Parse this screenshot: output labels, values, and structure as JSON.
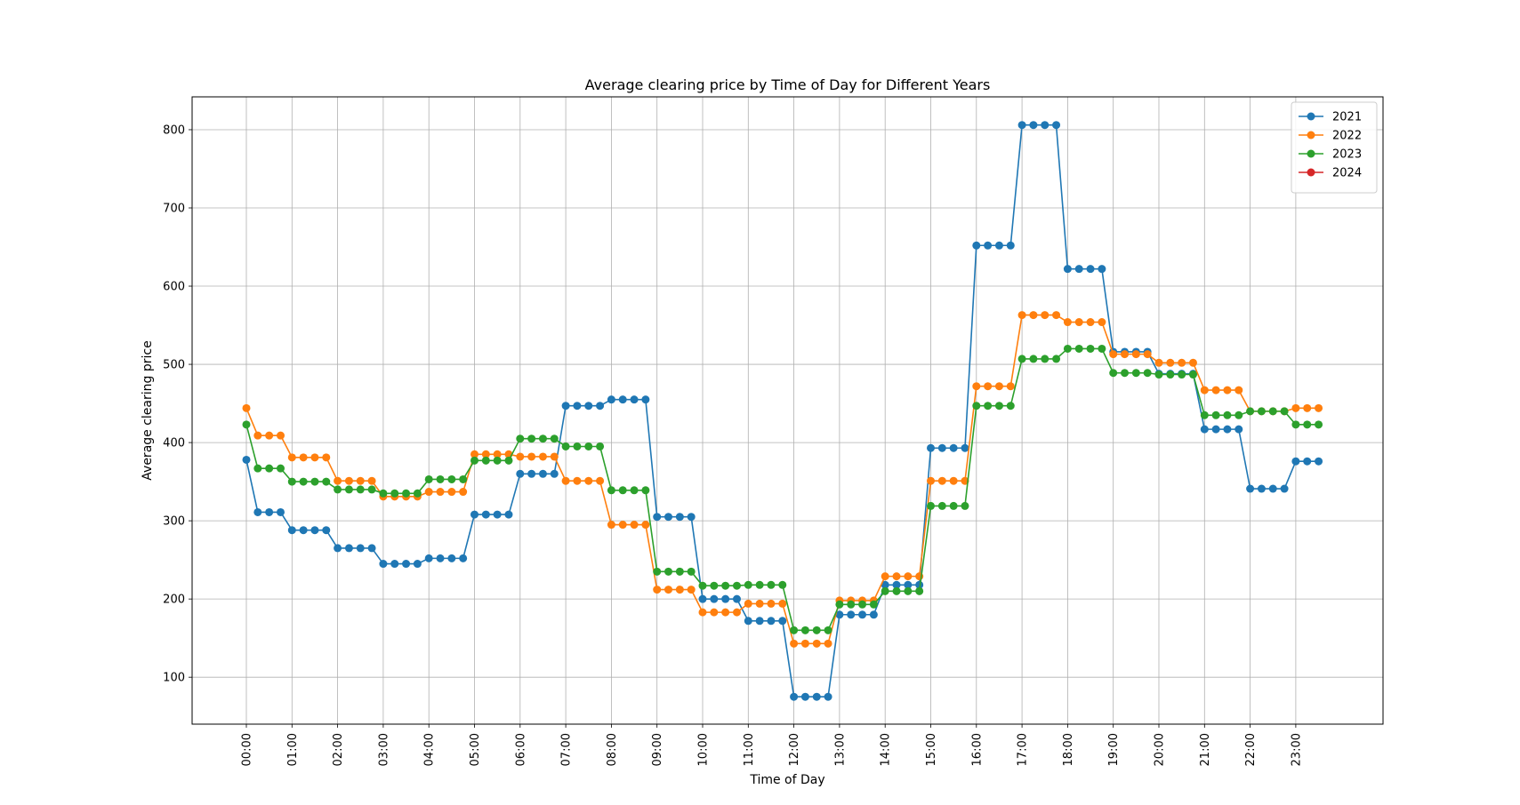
{
  "chart_data": {
    "type": "line",
    "title": "Average clearing price by Time of Day for Different Years",
    "xlabel": "Time of Day",
    "ylabel": "Average clearing price",
    "ylim": [
      40,
      842
    ],
    "yticks": [
      100,
      200,
      300,
      400,
      500,
      600,
      700,
      800
    ],
    "grid": true,
    "legend_position": "top-right",
    "xtick_labels": [
      "00:00",
      "01:00",
      "02:00",
      "03:00",
      "04:00",
      "05:00",
      "06:00",
      "07:00",
      "08:00",
      "09:00",
      "10:00",
      "11:00",
      "12:00",
      "13:00",
      "14:00",
      "15:00",
      "16:00",
      "17:00",
      "18:00",
      "19:00",
      "20:00",
      "21:00",
      "22:00",
      "23:00"
    ],
    "points_per_hour": 4,
    "series": [
      {
        "name": "2021",
        "color": "#1f77b4",
        "values": [
          378,
          311,
          311,
          311,
          288,
          288,
          288,
          288,
          265,
          265,
          265,
          265,
          245,
          245,
          245,
          245,
          252,
          252,
          252,
          252,
          308,
          308,
          308,
          308,
          360,
          360,
          360,
          360,
          447,
          447,
          447,
          447,
          455,
          455,
          455,
          455,
          305,
          305,
          305,
          305,
          200,
          200,
          200,
          200,
          172,
          172,
          172,
          172,
          75,
          75,
          75,
          75,
          180,
          180,
          180,
          180,
          218,
          218,
          218,
          218,
          393,
          393,
          393,
          393,
          652,
          652,
          652,
          652,
          806,
          806,
          806,
          806,
          622,
          622,
          622,
          622,
          516,
          516,
          516,
          516,
          488,
          488,
          488,
          488,
          417,
          417,
          417,
          417,
          341,
          341,
          341,
          341,
          376,
          376,
          376
        ]
      },
      {
        "name": "2022",
        "color": "#ff7f0e",
        "values": [
          444,
          409,
          409,
          409,
          381,
          381,
          381,
          381,
          351,
          351,
          351,
          351,
          331,
          331,
          331,
          331,
          337,
          337,
          337,
          337,
          385,
          385,
          385,
          385,
          382,
          382,
          382,
          382,
          351,
          351,
          351,
          351,
          295,
          295,
          295,
          295,
          212,
          212,
          212,
          212,
          183,
          183,
          183,
          183,
          194,
          194,
          194,
          194,
          143,
          143,
          143,
          143,
          198,
          198,
          198,
          198,
          229,
          229,
          229,
          229,
          351,
          351,
          351,
          351,
          472,
          472,
          472,
          472,
          563,
          563,
          563,
          563,
          554,
          554,
          554,
          554,
          513,
          513,
          513,
          513,
          502,
          502,
          502,
          502,
          467,
          467,
          467,
          467,
          440,
          440,
          440,
          440,
          444,
          444,
          444
        ]
      },
      {
        "name": "2023",
        "color": "#2ca02c",
        "values": [
          423,
          367,
          367,
          367,
          350,
          350,
          350,
          350,
          340,
          340,
          340,
          340,
          335,
          335,
          335,
          335,
          353,
          353,
          353,
          353,
          377,
          377,
          377,
          377,
          405,
          405,
          405,
          405,
          395,
          395,
          395,
          395,
          339,
          339,
          339,
          339,
          235,
          235,
          235,
          235,
          217,
          217,
          217,
          217,
          218,
          218,
          218,
          218,
          160,
          160,
          160,
          160,
          193,
          193,
          193,
          193,
          210,
          210,
          210,
          210,
          319,
          319,
          319,
          319,
          447,
          447,
          447,
          447,
          507,
          507,
          507,
          507,
          520,
          520,
          520,
          520,
          489,
          489,
          489,
          489,
          487,
          487,
          487,
          487,
          435,
          435,
          435,
          435,
          440,
          440,
          440,
          440,
          423,
          423,
          423
        ]
      },
      {
        "name": "2024",
        "color": "#d62728",
        "values": []
      }
    ]
  }
}
